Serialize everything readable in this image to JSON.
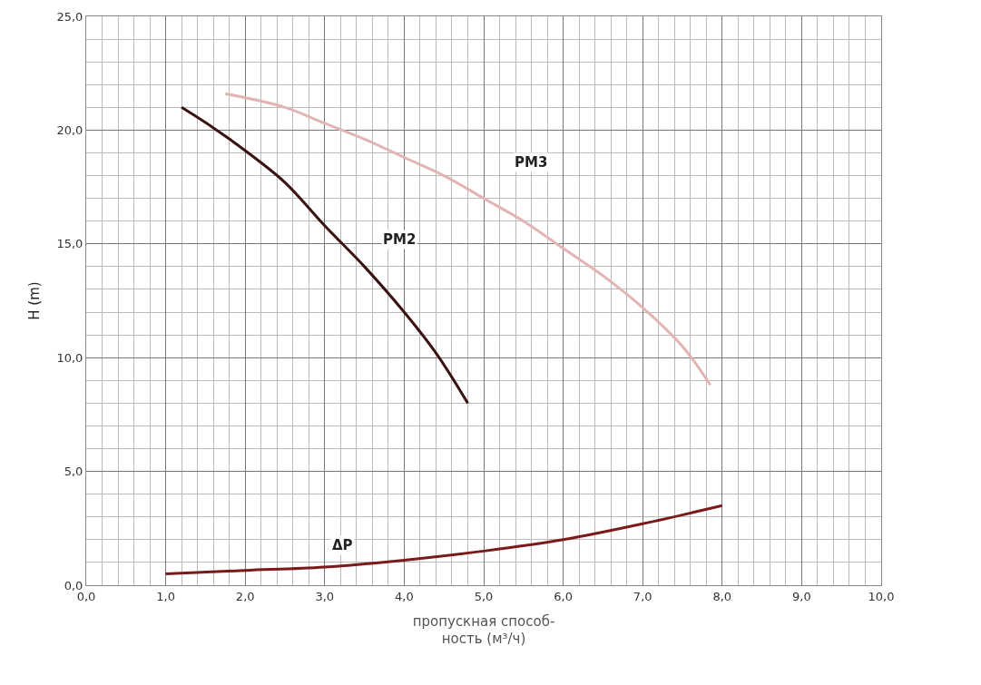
{
  "chart_data": {
    "type": "line",
    "xlabel": "пропускная способ-\nность (м³/ч)",
    "ylabel": "H (m)",
    "series": [
      {
        "name": "PM2",
        "color": "#3a1212",
        "x": [
          1.2,
          1.6,
          2.0,
          2.5,
          3.0,
          3.5,
          4.0,
          4.4,
          4.8
        ],
        "values": [
          21.0,
          20.1,
          19.1,
          17.7,
          15.8,
          14.0,
          12.0,
          10.2,
          8.0
        ]
      },
      {
        "name": "PM3",
        "color": "#e2b4b4",
        "x": [
          1.75,
          2.5,
          3.0,
          3.5,
          4.0,
          4.5,
          5.0,
          5.5,
          6.0,
          6.5,
          7.0,
          7.5,
          7.85
        ],
        "values": [
          21.6,
          21.0,
          20.3,
          19.6,
          18.8,
          18.0,
          17.0,
          16.0,
          14.8,
          13.6,
          12.2,
          10.5,
          8.8
        ]
      },
      {
        "name": "ΔP",
        "color": "#7a1a1a",
        "x": [
          1.0,
          2.0,
          3.0,
          4.0,
          5.0,
          6.0,
          7.0,
          8.0
        ],
        "values": [
          0.5,
          0.65,
          0.8,
          1.1,
          1.5,
          2.0,
          2.7,
          3.5
        ]
      }
    ],
    "xlim": [
      0,
      10
    ],
    "ylim": [
      0,
      25
    ],
    "xticks": [
      {
        "value": 0,
        "label": "0,0"
      },
      {
        "value": 1,
        "label": "1,0"
      },
      {
        "value": 2,
        "label": "2,0"
      },
      {
        "value": 3,
        "label": "3,0"
      },
      {
        "value": 4,
        "label": "4,0"
      },
      {
        "value": 5,
        "label": "5,0"
      },
      {
        "value": 6,
        "label": "6,0"
      },
      {
        "value": 7,
        "label": "7,0"
      },
      {
        "value": 8,
        "label": "8,0"
      },
      {
        "value": 9,
        "label": "9,0"
      },
      {
        "value": 10,
        "label": "10,0"
      }
    ],
    "yticks": [
      {
        "value": 0,
        "label": "0,0"
      },
      {
        "value": 5,
        "label": "5,0"
      },
      {
        "value": 10,
        "label": "10,0"
      },
      {
        "value": 15,
        "label": "15,0"
      },
      {
        "value": 20,
        "label": "20,0"
      },
      {
        "value": 25,
        "label": "25,0"
      }
    ],
    "grid": true,
    "marker": "none",
    "line_style": "solid",
    "legend": false
  }
}
